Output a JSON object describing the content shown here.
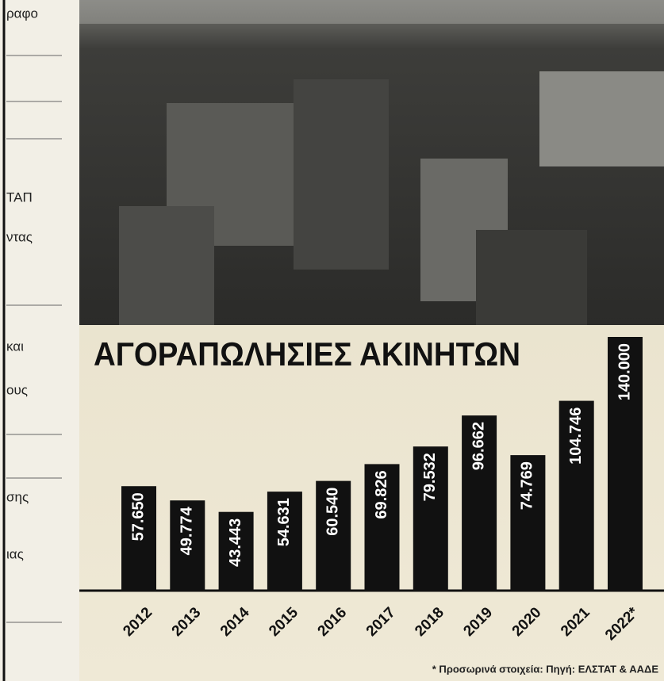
{
  "chart_data": {
    "type": "bar",
    "title": "ΑΓΟΡΑΠΩΛΗΣΙΕΣ ΑΚΙΝΗΤΩΝ",
    "categories": [
      "2012",
      "2013",
      "2014",
      "2015",
      "2016",
      "2017",
      "2018",
      "2019",
      "2020",
      "2021",
      "2022*"
    ],
    "values": [
      57650,
      49774,
      43443,
      54631,
      60540,
      69826,
      79532,
      96662,
      74769,
      104746,
      140000
    ],
    "value_labels": [
      "57.650",
      "49.774",
      "43.443",
      "54.631",
      "60.540",
      "69.826",
      "79.532",
      "96.662",
      "74.769",
      "104.746",
      "140.000"
    ],
    "color": "#111111",
    "footnote": "* Προσωρινά στοιχεία: Πηγή: ΕΛΣΤΑΤ & ΑΑΔΕ"
  },
  "side_fragments": [
    "ραφο",
    "ΤΑΠ",
    "ντας",
    "και",
    "ους",
    "σης",
    "ιας"
  ]
}
